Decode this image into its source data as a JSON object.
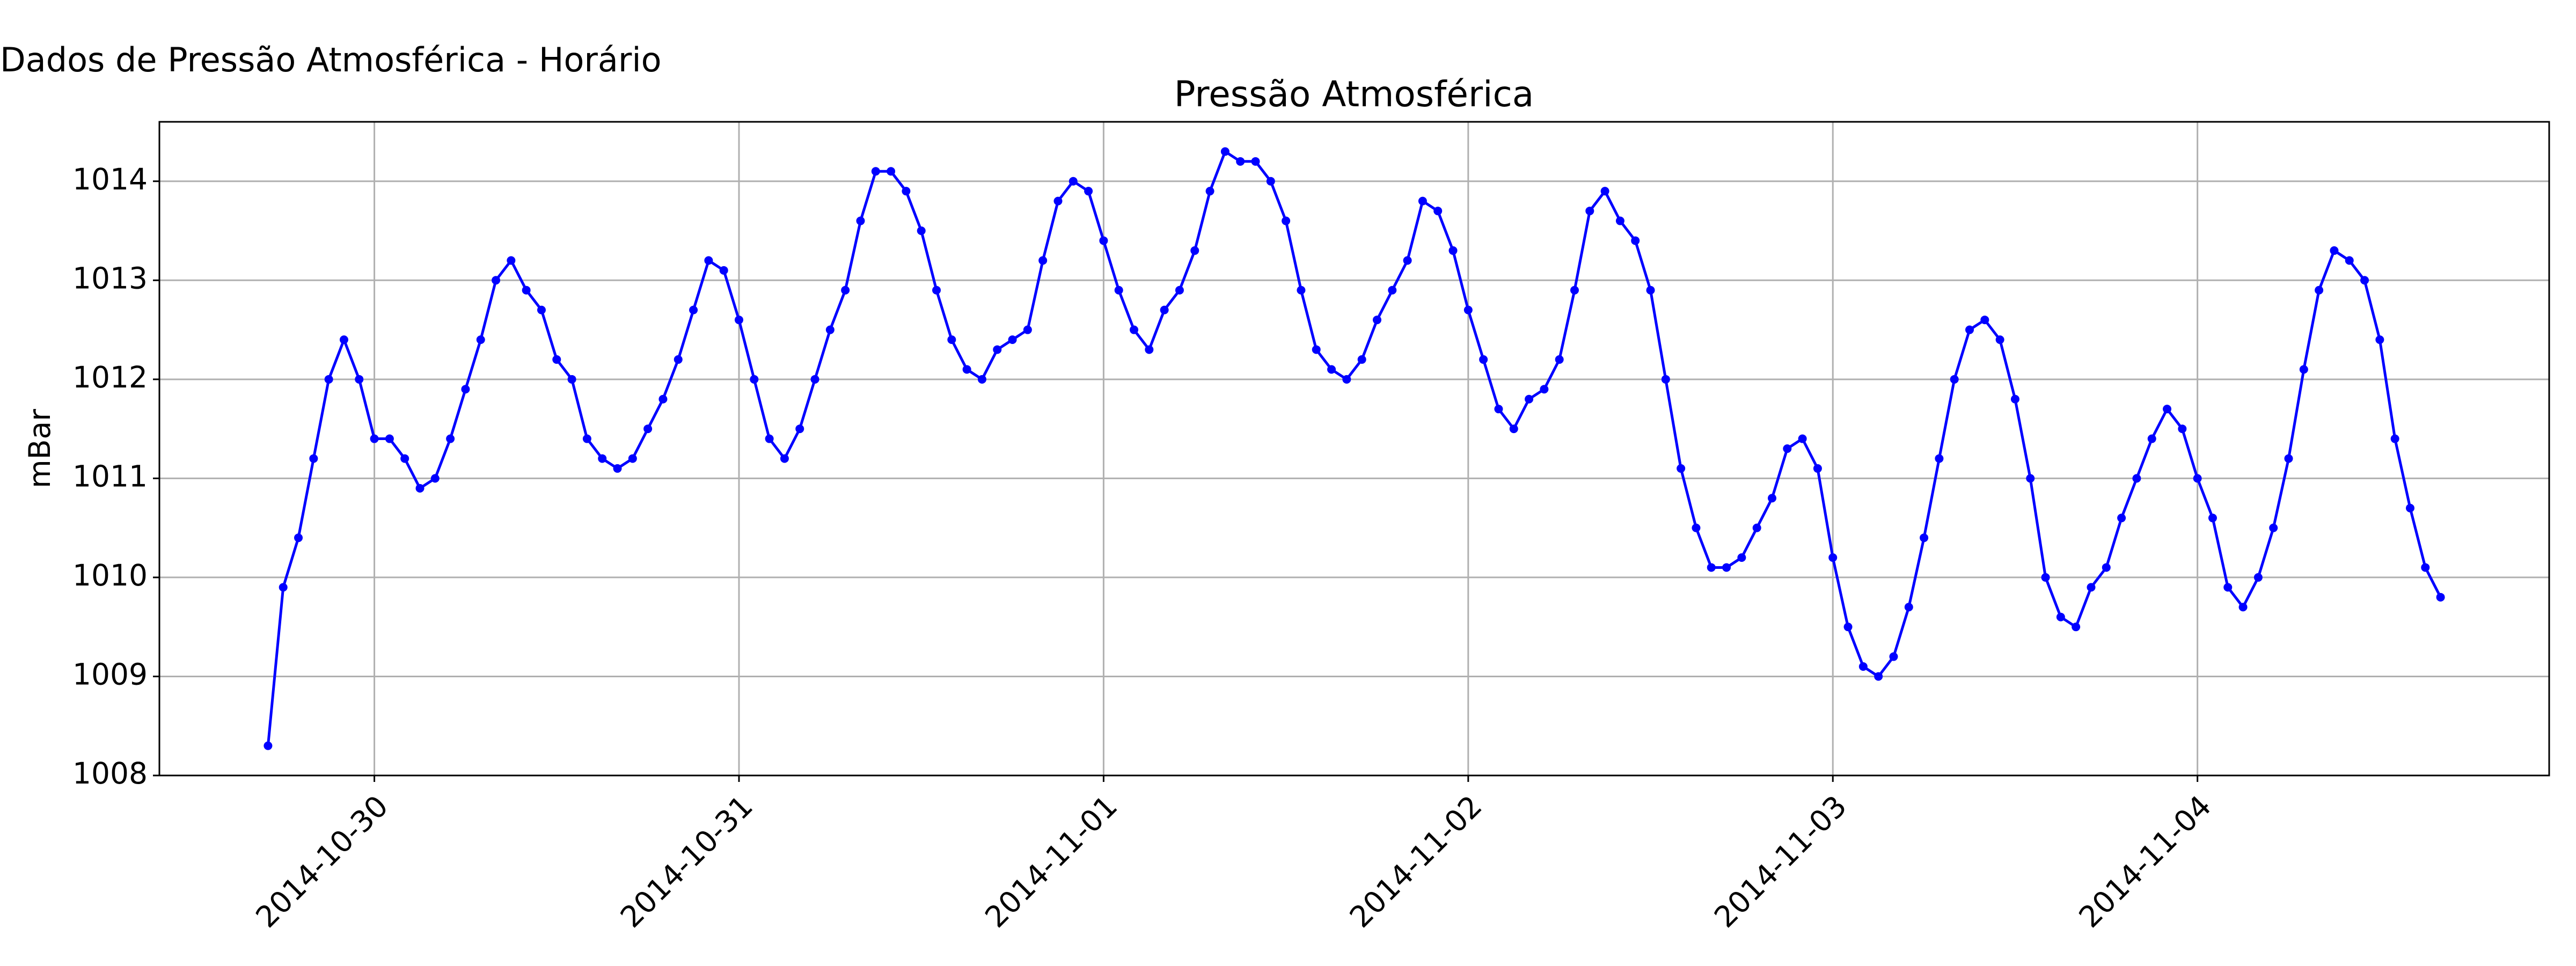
{
  "chart_data": {
    "type": "line",
    "suptitle": "Dados de Pressão Atmosférica - Horário",
    "title": "Pressão Atmosférica",
    "ylabel": "mBar",
    "grid": true,
    "x": [
      "2014-10-29 17:00",
      "2014-10-29 18:00",
      "2014-10-29 19:00",
      "2014-10-29 20:00",
      "2014-10-29 21:00",
      "2014-10-29 22:00",
      "2014-10-29 23:00",
      "2014-10-30 00:00",
      "2014-10-30 01:00",
      "2014-10-30 02:00",
      "2014-10-30 03:00",
      "2014-10-30 04:00",
      "2014-10-30 05:00",
      "2014-10-30 06:00",
      "2014-10-30 07:00",
      "2014-10-30 08:00",
      "2014-10-30 09:00",
      "2014-10-30 10:00",
      "2014-10-30 11:00",
      "2014-10-30 12:00",
      "2014-10-30 13:00",
      "2014-10-30 14:00",
      "2014-10-30 15:00",
      "2014-10-30 16:00",
      "2014-10-30 17:00",
      "2014-10-30 18:00",
      "2014-10-30 19:00",
      "2014-10-30 20:00",
      "2014-10-30 21:00",
      "2014-10-30 22:00",
      "2014-10-30 23:00",
      "2014-10-31 00:00",
      "2014-10-31 01:00",
      "2014-10-31 02:00",
      "2014-10-31 03:00",
      "2014-10-31 04:00",
      "2014-10-31 05:00",
      "2014-10-31 06:00",
      "2014-10-31 07:00",
      "2014-10-31 08:00",
      "2014-10-31 09:00",
      "2014-10-31 10:00",
      "2014-10-31 11:00",
      "2014-10-31 12:00",
      "2014-10-31 13:00",
      "2014-10-31 14:00",
      "2014-10-31 15:00",
      "2014-10-31 16:00",
      "2014-10-31 17:00",
      "2014-10-31 18:00",
      "2014-10-31 19:00",
      "2014-10-31 20:00",
      "2014-10-31 21:00",
      "2014-10-31 22:00",
      "2014-10-31 23:00",
      "2014-11-01 00:00",
      "2014-11-01 01:00",
      "2014-11-01 02:00",
      "2014-11-01 03:00",
      "2014-11-01 04:00",
      "2014-11-01 05:00",
      "2014-11-01 06:00",
      "2014-11-01 07:00",
      "2014-11-01 08:00",
      "2014-11-01 09:00",
      "2014-11-01 10:00",
      "2014-11-01 11:00",
      "2014-11-01 12:00",
      "2014-11-01 13:00",
      "2014-11-01 14:00",
      "2014-11-01 15:00",
      "2014-11-01 16:00",
      "2014-11-01 17:00",
      "2014-11-01 18:00",
      "2014-11-01 19:00",
      "2014-11-01 20:00",
      "2014-11-01 21:00",
      "2014-11-01 22:00",
      "2014-11-01 23:00",
      "2014-11-02 00:00",
      "2014-11-02 01:00",
      "2014-11-02 02:00",
      "2014-11-02 03:00",
      "2014-11-02 04:00",
      "2014-11-02 05:00",
      "2014-11-02 06:00",
      "2014-11-02 07:00",
      "2014-11-02 08:00",
      "2014-11-02 09:00",
      "2014-11-02 10:00",
      "2014-11-02 11:00",
      "2014-11-02 12:00",
      "2014-11-02 13:00",
      "2014-11-02 14:00",
      "2014-11-02 15:00",
      "2014-11-02 16:00",
      "2014-11-02 17:00",
      "2014-11-02 18:00",
      "2014-11-02 19:00",
      "2014-11-02 20:00",
      "2014-11-02 21:00",
      "2014-11-02 22:00",
      "2014-11-02 23:00",
      "2014-11-03 00:00",
      "2014-11-03 01:00",
      "2014-11-03 02:00",
      "2014-11-03 03:00",
      "2014-11-03 04:00",
      "2014-11-03 05:00",
      "2014-11-03 06:00",
      "2014-11-03 07:00",
      "2014-11-03 08:00",
      "2014-11-03 09:00",
      "2014-11-03 10:00",
      "2014-11-03 11:00",
      "2014-11-03 12:00",
      "2014-11-03 13:00",
      "2014-11-03 14:00",
      "2014-11-03 15:00",
      "2014-11-03 16:00",
      "2014-11-03 17:00",
      "2014-11-03 18:00",
      "2014-11-03 19:00",
      "2014-11-03 20:00",
      "2014-11-03 21:00",
      "2014-11-03 22:00",
      "2014-11-03 23:00",
      "2014-11-04 00:00",
      "2014-11-04 01:00",
      "2014-11-04 02:00",
      "2014-11-04 03:00",
      "2014-11-04 04:00",
      "2014-11-04 05:00",
      "2014-11-04 06:00",
      "2014-11-04 07:00",
      "2014-11-04 08:00",
      "2014-11-04 09:00",
      "2014-11-04 10:00",
      "2014-11-04 11:00",
      "2014-11-04 12:00",
      "2014-11-04 13:00",
      "2014-11-04 14:00",
      "2014-11-04 15:00",
      "2014-11-04 16:00"
    ],
    "series": [
      {
        "name": "Pressão",
        "color": "#0000ff",
        "values": [
          1008.3,
          1009.9,
          1010.4,
          1011.2,
          1012.0,
          1012.4,
          1012.0,
          1011.4,
          1011.4,
          1011.2,
          1010.9,
          1011.0,
          1011.4,
          1011.9,
          1012.4,
          1013.0,
          1013.2,
          1012.9,
          1012.7,
          1012.2,
          1012.0,
          1011.4,
          1011.2,
          1011.1,
          1011.2,
          1011.5,
          1011.8,
          1012.2,
          1012.7,
          1013.2,
          1013.1,
          1012.6,
          1012.0,
          1011.4,
          1011.2,
          1011.5,
          1012.0,
          1012.5,
          1012.9,
          1013.6,
          1014.1,
          1014.1,
          1013.9,
          1013.5,
          1012.9,
          1012.4,
          1012.1,
          1012.0,
          1012.3,
          1012.4,
          1012.5,
          1013.2,
          1013.8,
          1014.0,
          1013.9,
          1013.4,
          1012.9,
          1012.5,
          1012.3,
          1012.7,
          1012.9,
          1013.3,
          1013.9,
          1014.3,
          1014.2,
          1014.2,
          1014.0,
          1013.6,
          1012.9,
          1012.3,
          1012.1,
          1012.0,
          1012.2,
          1012.6,
          1012.9,
          1013.2,
          1013.8,
          1013.7,
          1013.3,
          1012.7,
          1012.2,
          1011.7,
          1011.5,
          1011.8,
          1011.9,
          1012.2,
          1012.9,
          1013.7,
          1013.9,
          1013.6,
          1013.4,
          1012.9,
          1012.0,
          1011.1,
          1010.5,
          1010.1,
          1010.1,
          1010.2,
          1010.5,
          1010.8,
          1011.3,
          1011.4,
          1011.1,
          1010.2,
          1009.5,
          1009.1,
          1009.0,
          1009.2,
          1009.7,
          1010.4,
          1011.2,
          1012.0,
          1012.5,
          1012.6,
          1012.4,
          1011.8,
          1011.0,
          1010.0,
          1009.6,
          1009.5,
          1009.9,
          1010.1,
          1010.6,
          1011.0,
          1011.4,
          1011.7,
          1011.5,
          1011.0,
          1010.6,
          1009.9,
          1009.7,
          1010.0,
          1010.5,
          1011.2,
          1012.1,
          1012.9,
          1013.3,
          1013.2,
          1013.0,
          1012.4,
          1011.4,
          1010.7,
          1010.1,
          1009.8
        ]
      }
    ],
    "xlim": [
      "2014-10-29 09:51",
      "2014-11-04 23:09"
    ],
    "xticks": [
      "2014-10-30",
      "2014-10-31",
      "2014-11-01",
      "2014-11-02",
      "2014-11-03",
      "2014-11-04"
    ],
    "ylim": [
      1008.0,
      1014.6
    ],
    "yticks": [
      1008,
      1009,
      1010,
      1011,
      1012,
      1013,
      1014
    ]
  }
}
